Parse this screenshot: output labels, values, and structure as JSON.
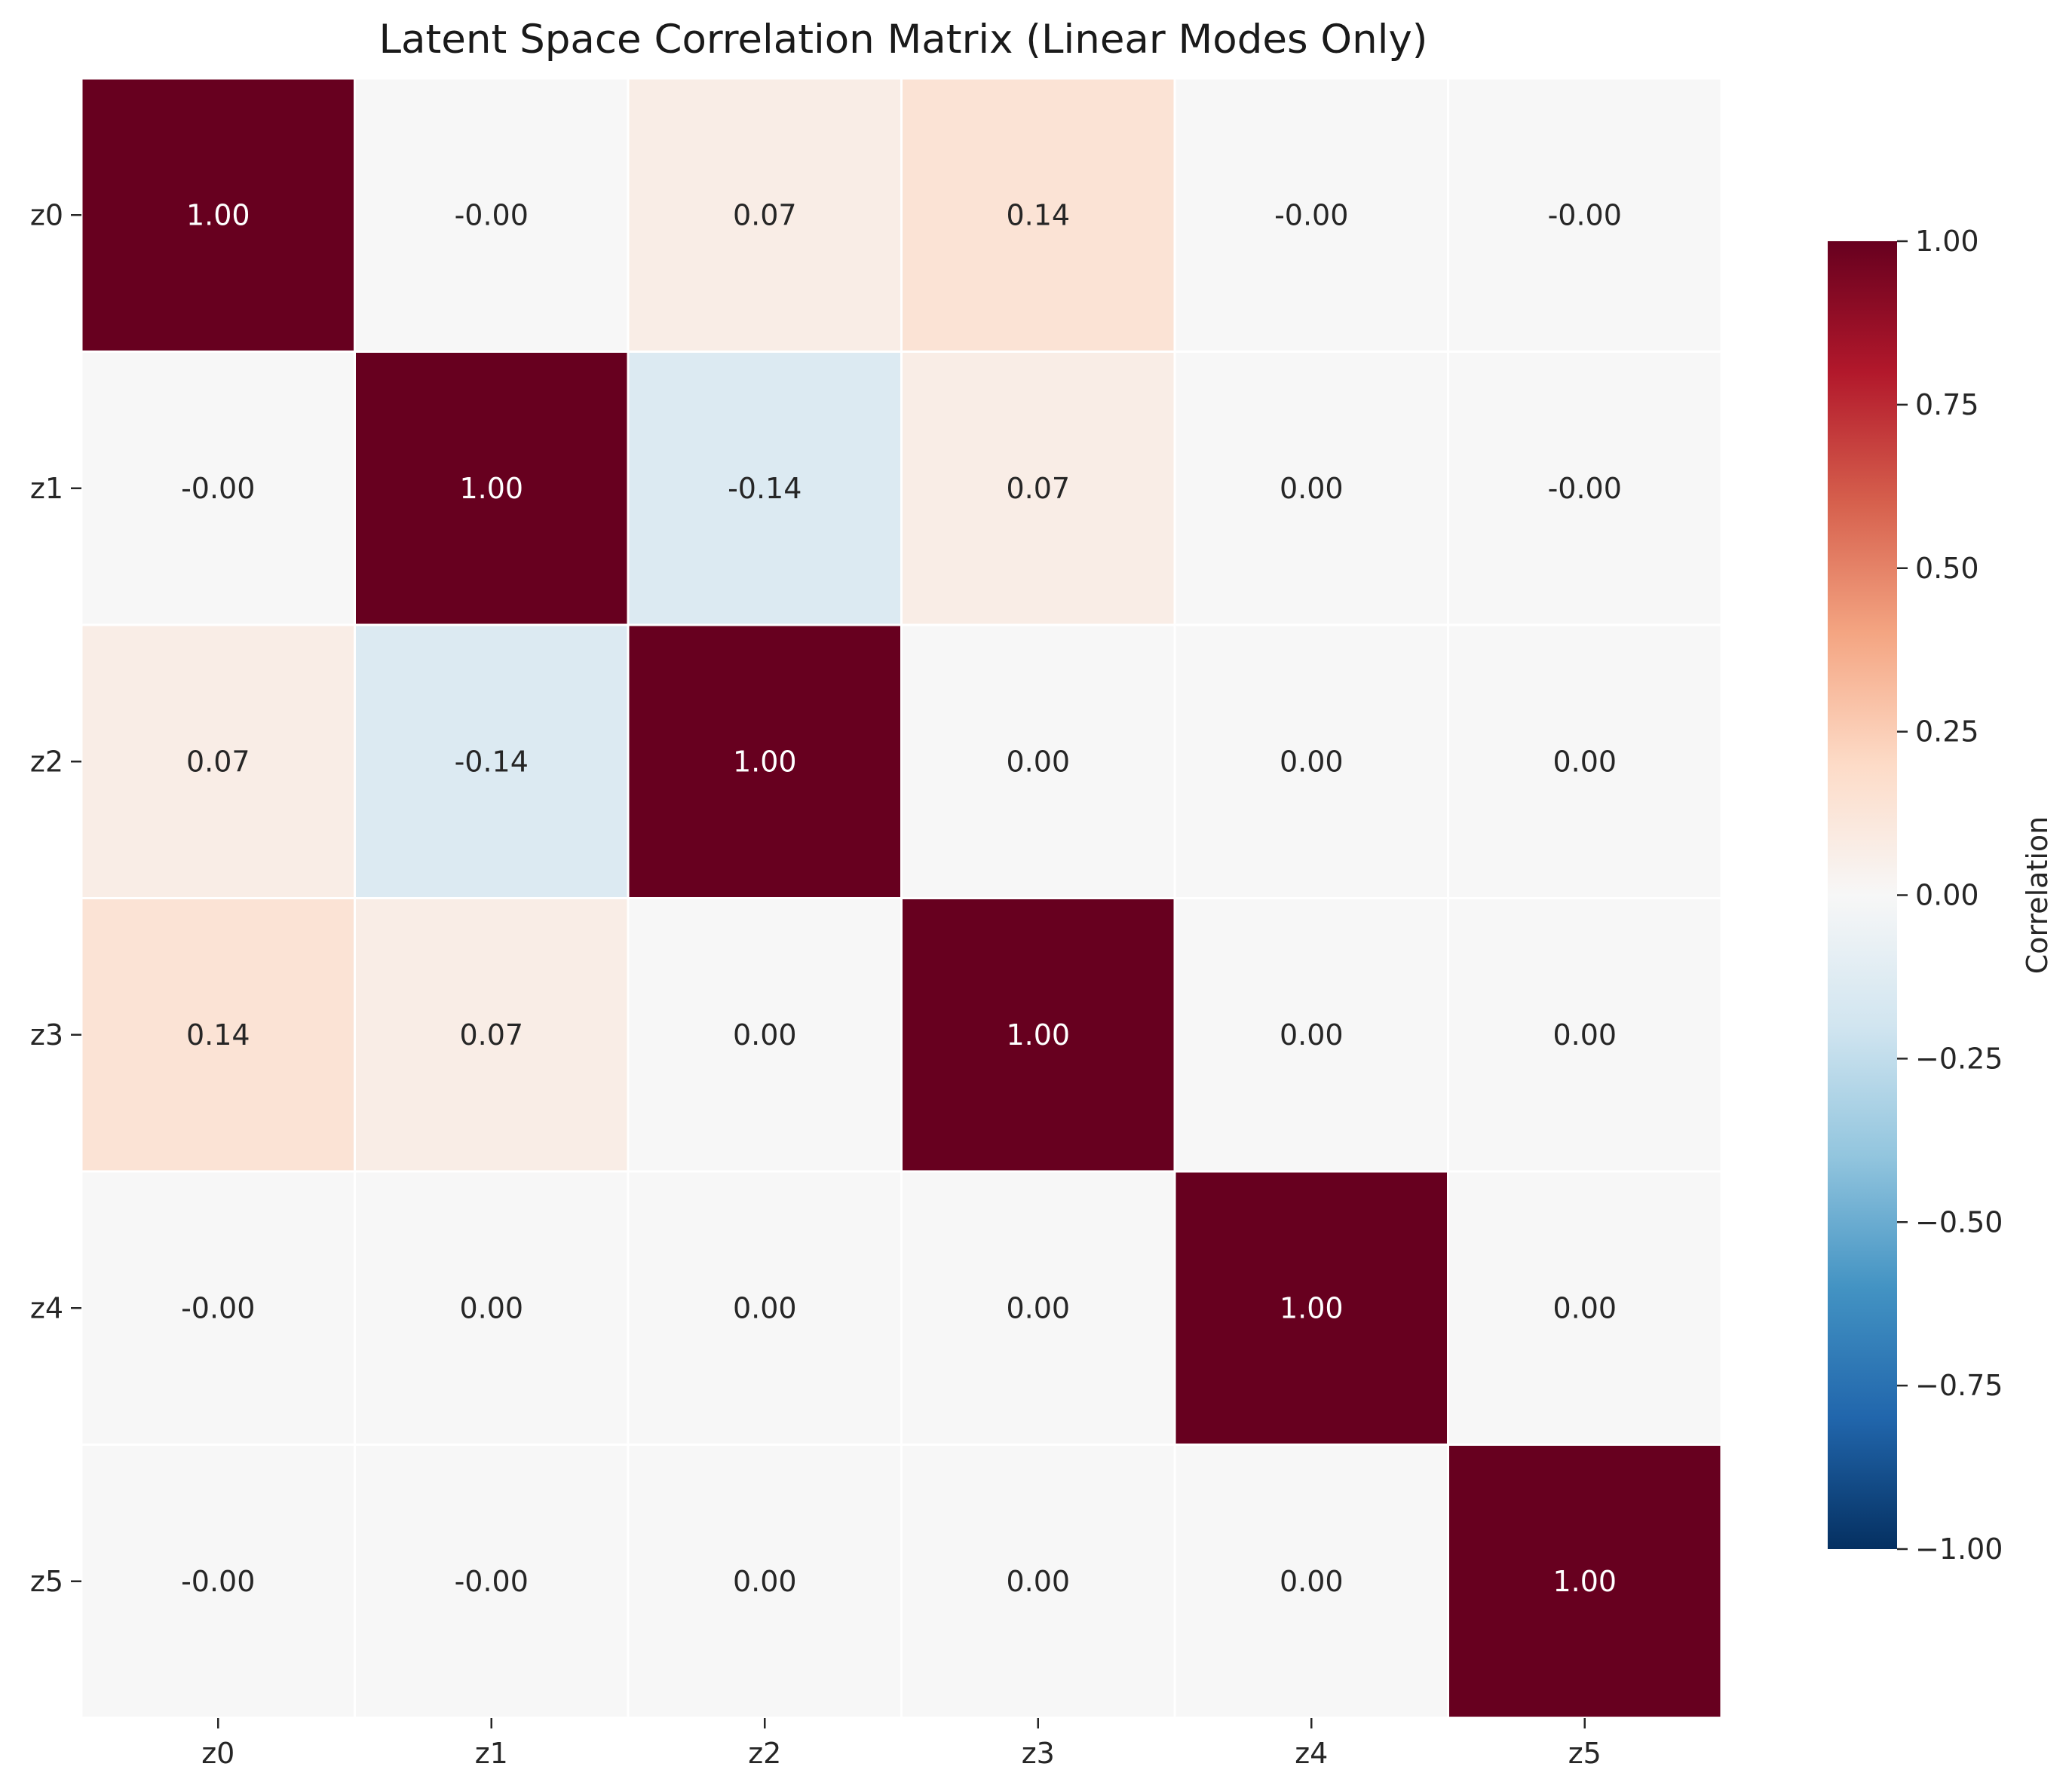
{
  "chart_data": {
    "type": "heatmap",
    "title": "Latent Space Correlation Matrix (Linear Modes Only)",
    "x_categories": [
      "z0",
      "z1",
      "z2",
      "z3",
      "z4",
      "z5"
    ],
    "y_categories": [
      "z0",
      "z1",
      "z2",
      "z3",
      "z4",
      "z5"
    ],
    "values": [
      [
        1.0,
        -0.0,
        0.07,
        0.14,
        -0.0,
        -0.0
      ],
      [
        -0.0,
        1.0,
        -0.14,
        0.07,
        0.0,
        -0.0
      ],
      [
        0.07,
        -0.14,
        1.0,
        0.0,
        0.0,
        0.0
      ],
      [
        0.14,
        0.07,
        0.0,
        1.0,
        0.0,
        0.0
      ],
      [
        -0.0,
        0.0,
        0.0,
        0.0,
        1.0,
        0.0
      ],
      [
        -0.0,
        -0.0,
        0.0,
        0.0,
        0.0,
        1.0
      ]
    ],
    "cell_labels": [
      [
        "1.00",
        "-0.00",
        "0.07",
        "0.14",
        "-0.00",
        "-0.00"
      ],
      [
        "-0.00",
        "1.00",
        "-0.14",
        "0.07",
        "0.00",
        "-0.00"
      ],
      [
        "0.07",
        "-0.14",
        "1.00",
        "0.00",
        "0.00",
        "0.00"
      ],
      [
        "0.14",
        "0.07",
        "0.00",
        "1.00",
        "0.00",
        "0.00"
      ],
      [
        "-0.00",
        "0.00",
        "0.00",
        "0.00",
        "1.00",
        "0.00"
      ],
      [
        "-0.00",
        "-0.00",
        "0.00",
        "0.00",
        "0.00",
        "1.00"
      ]
    ],
    "colorbar": {
      "label": "Correlation",
      "range": [
        -1.0,
        1.0
      ],
      "ticks": [
        1.0,
        0.75,
        0.5,
        0.25,
        0.0,
        -0.25,
        -0.5,
        -0.75,
        -1.0
      ],
      "tick_labels": [
        "1.00",
        "0.75",
        "0.50",
        "0.25",
        "0.00",
        "−0.25",
        "−0.50",
        "−0.75",
        "−1.00"
      ],
      "colormap": "RdBu_r",
      "color_stops": [
        "#053061",
        "#2166ac",
        "#4393c3",
        "#92c5de",
        "#d1e5f0",
        "#f7f7f7",
        "#fddbc7",
        "#f4a582",
        "#d6604d",
        "#b2182b",
        "#67001f"
      ]
    },
    "grid_line_color": "#ffffff"
  }
}
